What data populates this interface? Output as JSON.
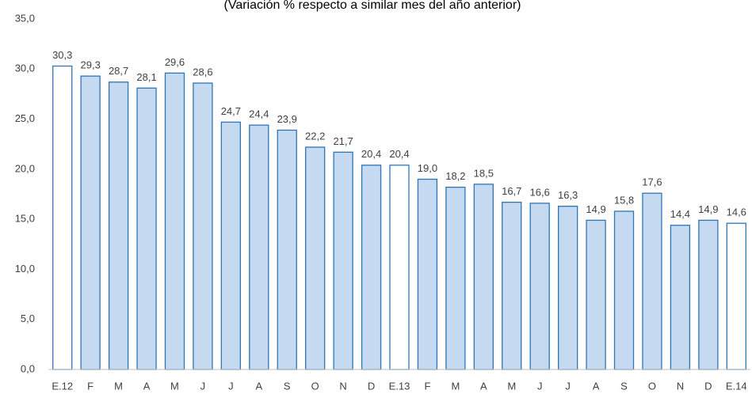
{
  "chart_data": {
    "type": "bar",
    "subtitle": "(Variación % respecto a similar mes del año anterior)",
    "categories": [
      "E.12",
      "F",
      "M",
      "A",
      "M",
      "J",
      "J",
      "A",
      "S",
      "O",
      "N",
      "D",
      "E.13",
      "F",
      "M",
      "A",
      "M",
      "J",
      "J",
      "A",
      "S",
      "O",
      "N",
      "D",
      "E.14"
    ],
    "values": [
      30.3,
      29.3,
      28.7,
      28.1,
      29.6,
      28.6,
      24.7,
      24.4,
      23.9,
      22.2,
      21.7,
      20.4,
      20.4,
      19.0,
      18.2,
      18.5,
      16.7,
      16.6,
      16.3,
      14.9,
      15.8,
      17.6,
      14.4,
      14.9,
      14.6
    ],
    "value_labels": [
      "30,3",
      "29,3",
      "28,7",
      "28,1",
      "29,6",
      "28,6",
      "24,7",
      "24,4",
      "23,9",
      "22,2",
      "21,7",
      "20,4",
      "20,4",
      "19,0",
      "18,2",
      "18,5",
      "16,7",
      "16,6",
      "16,3",
      "14,9",
      "15,8",
      "17,6",
      "14,4",
      "14,9",
      "14,6"
    ],
    "colors": [
      "#ffffff",
      "#c5d9f1",
      "#c5d9f1",
      "#c5d9f1",
      "#c5d9f1",
      "#c5d9f1",
      "#c5d9f1",
      "#c5d9f1",
      "#c5d9f1",
      "#c5d9f1",
      "#c5d9f1",
      "#c5d9f1",
      "#ffffff",
      "#c5d9f1",
      "#c5d9f1",
      "#c5d9f1",
      "#c5d9f1",
      "#c5d9f1",
      "#c5d9f1",
      "#c5d9f1",
      "#c5d9f1",
      "#c5d9f1",
      "#c5d9f1",
      "#c5d9f1",
      "#ffffff"
    ],
    "edge_color": "#2e75b6",
    "ylim": [
      0,
      35
    ],
    "yticks": [
      {
        "value": 0,
        "label": "0,0"
      },
      {
        "value": 5,
        "label": "5,0"
      },
      {
        "value": 10,
        "label": "10,0"
      },
      {
        "value": 15,
        "label": "15,0"
      },
      {
        "value": 20,
        "label": "20,0"
      },
      {
        "value": 25,
        "label": "25,0"
      },
      {
        "value": 30,
        "label": "30,0"
      },
      {
        "value": 35,
        "label": "35,0"
      }
    ],
    "grid": false
  }
}
